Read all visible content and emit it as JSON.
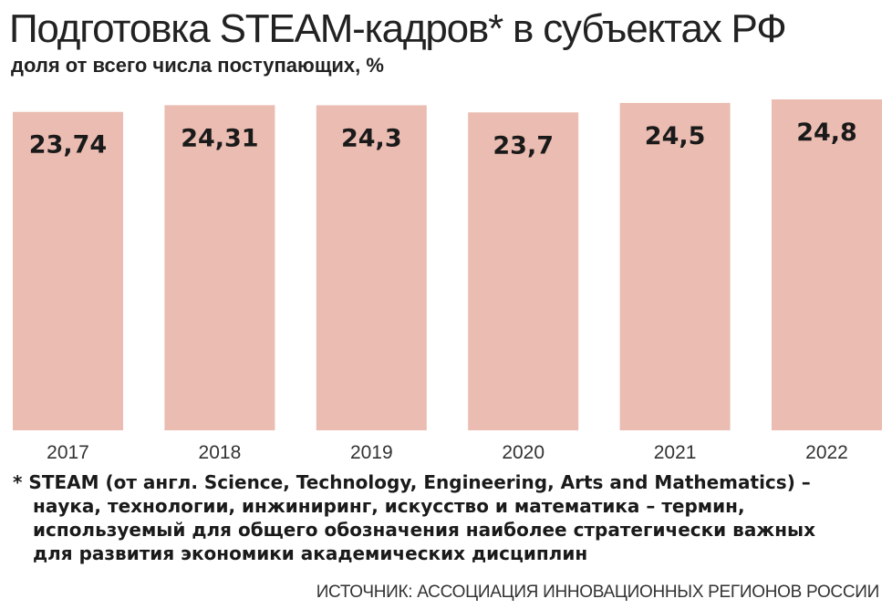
{
  "title": "Подготовка STEAM-кадров* в субъектах РФ",
  "subtitle": "доля от всего числа поступающих, %",
  "chart_data": {
    "type": "bar",
    "categories": [
      "2017",
      "2018",
      "2019",
      "2020",
      "2021",
      "2022"
    ],
    "values": [
      23.74,
      24.31,
      24.3,
      23.7,
      24.5,
      24.8
    ],
    "value_labels": [
      "23,74",
      "24,31",
      "24,3",
      "23,7",
      "24,5",
      "24,8"
    ],
    "title": "Подготовка STEAM-кадров* в субъектах РФ",
    "subtitle": "доля от всего числа поступающих, %",
    "xlabel": "",
    "ylabel": "",
    "ylim": [
      0,
      24.8
    ],
    "grid": false,
    "legend": "none",
    "bar_color": "#ebbcb1"
  },
  "footnote": {
    "lines": [
      "* STEAM (от англ. Science, Technology, Engineering, Arts and Mathematics) –",
      "наука, технологии, инжиниринг, искусство и математика – термин,",
      "используемый для общего обозначения наиболее стратегически важных",
      "для развития экономики академических дисциплин"
    ]
  },
  "source": "ИСТОЧНИК: АССОЦИАЦИЯ ИННОВАЦИОННЫХ РЕГИОНОВ РОССИИ"
}
